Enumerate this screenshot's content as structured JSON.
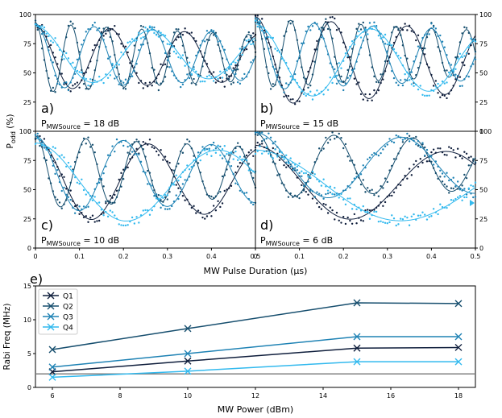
{
  "chart_data": [
    {
      "type": "scatter",
      "title": "",
      "xlabel": "MW Pulse Duration (μs)",
      "ylabel": "P_odd (%)",
      "ylabel_main": "P",
      "ylabel_sub": "odd",
      "ylabel_unit": " (%)",
      "xlim": [
        0,
        0.5
      ],
      "ylim": [
        0,
        100
      ],
      "xticks": [
        "0",
        "0.1",
        "0.2",
        "0.3",
        "0.4",
        "0.5"
      ],
      "yticks": [
        "0",
        "25",
        "50",
        "75",
        "100"
      ],
      "colors": {
        "Q1": "#0f1e3c",
        "Q2": "#164e6e",
        "Q3": "#1e82b4",
        "Q4": "#32b9ee"
      },
      "panels": [
        {
          "label": "a)",
          "source_prefix": "P",
          "source_sub": "MWSource",
          "source_value": " = 18 dB",
          "power_dB": 18,
          "series": [
            {
              "name": "Q1",
              "freq_MHz": 5.9,
              "amplitude": 28,
              "offset": 63,
              "decay_us": 1.5
            },
            {
              "name": "Q2",
              "freq_MHz": 12.4,
              "amplitude": 30,
              "offset": 63,
              "decay_us": 1.2
            },
            {
              "name": "Q3",
              "freq_MHz": 7.5,
              "amplitude": 28,
              "offset": 64,
              "decay_us": 1.5
            },
            {
              "name": "Q4",
              "freq_MHz": 3.8,
              "amplitude": 25,
              "offset": 65,
              "decay_us": 1.8
            }
          ]
        },
        {
          "label": "b)",
          "source_prefix": "P",
          "source_sub": "MWSource",
          "source_value": " = 15 dB",
          "power_dB": 15,
          "series": [
            {
              "name": "Q1",
              "freq_MHz": 5.8,
              "amplitude": 38,
              "offset": 60,
              "decay_us": 1.5
            },
            {
              "name": "Q2",
              "freq_MHz": 12.5,
              "amplitude": 30,
              "offset": 67,
              "decay_us": 1.2
            },
            {
              "name": "Q3",
              "freq_MHz": 7.5,
              "amplitude": 30,
              "offset": 65,
              "decay_us": 1.5
            },
            {
              "name": "Q4",
              "freq_MHz": 3.8,
              "amplitude": 32,
              "offset": 60,
              "decay_us": 1.8
            }
          ]
        },
        {
          "label": "c)",
          "source_prefix": "P",
          "source_sub": "MWSource",
          "source_value": " = 10 dB",
          "power_dB": 10,
          "series": [
            {
              "name": "Q1",
              "freq_MHz": 3.9,
              "amplitude": 36,
              "offset": 58,
              "decay_us": 1.8
            },
            {
              "name": "Q2",
              "freq_MHz": 8.7,
              "amplitude": 31,
              "offset": 65,
              "decay_us": 1.4
            },
            {
              "name": "Q3",
              "freq_MHz": 5.0,
              "amplitude": 33,
              "offset": 63,
              "decay_us": 1.6
            },
            {
              "name": "Q4",
              "freq_MHz": 2.4,
              "amplitude": 35,
              "offset": 55,
              "decay_us": 2.2
            }
          ]
        },
        {
          "label": "d)",
          "source_prefix": "P",
          "source_sub": "MWSource",
          "source_value": " = 6 dB",
          "power_dB": 6,
          "series": [
            {
              "name": "Q1",
              "freq_MHz": 2.3,
              "amplitude": 33,
              "offset": 55,
              "decay_us": 2.5
            },
            {
              "name": "Q2",
              "freq_MHz": 5.6,
              "amplitude": 28,
              "offset": 71,
              "decay_us": 2.0
            },
            {
              "name": "Q3",
              "freq_MHz": 3.0,
              "amplitude": 29,
              "offset": 70,
              "decay_us": 2.2
            },
            {
              "name": "Q4",
              "freq_MHz": 1.5,
              "amplitude": 32,
              "offset": 52,
              "decay_us": 3.0
            }
          ]
        }
      ]
    },
    {
      "type": "line",
      "panel_label": "e)",
      "title": "",
      "xlabel": "MW Power (dBm)",
      "ylabel": "Rabi Freq (MHz)",
      "xlim": [
        5.5,
        18.5
      ],
      "ylim": [
        0,
        15
      ],
      "xticks": [
        "6",
        "8",
        "10",
        "12",
        "14",
        "16",
        "18"
      ],
      "yticks": [
        "0",
        "5",
        "10",
        "15"
      ],
      "x": [
        6,
        10,
        15,
        18
      ],
      "series": [
        {
          "name": "Q1",
          "values": [
            2.3,
            3.9,
            5.8,
            5.9
          ],
          "color": "#0f1e3c"
        },
        {
          "name": "Q2",
          "values": [
            5.6,
            8.7,
            12.5,
            12.4
          ],
          "color": "#164e6e"
        },
        {
          "name": "Q3",
          "values": [
            3.0,
            5.0,
            7.5,
            7.5
          ],
          "color": "#1e82b4"
        },
        {
          "name": "Q4",
          "values": [
            1.5,
            2.4,
            3.8,
            3.8
          ],
          "color": "#32b9ee"
        }
      ],
      "reference_line": {
        "y": 2.0,
        "color": "#808080"
      },
      "legend_position": "top-left"
    }
  ]
}
